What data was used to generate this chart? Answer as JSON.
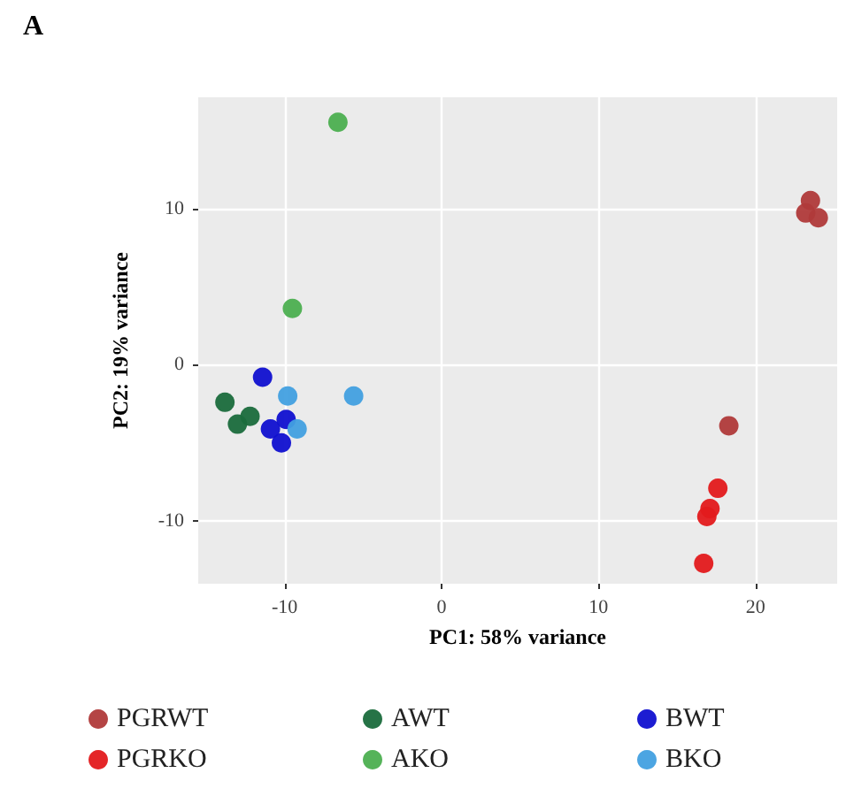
{
  "chart_data": {
    "type": "scatter",
    "title": "A",
    "xlabel": "PC1: 58% variance",
    "ylabel": "PC2: 19% variance",
    "xlim": [
      -15.5,
      25.2
    ],
    "ylim": [
      -14,
      17.1
    ],
    "xticks": [
      -10,
      0,
      10,
      20
    ],
    "yticks": [
      -10,
      0,
      10
    ],
    "grid": true,
    "legend": "bottom",
    "marker": "circle",
    "series": [
      {
        "name": "PGRWT",
        "color": "#b03a3a",
        "x": [
          23.5,
          23.2,
          24,
          18.3
        ],
        "values": [
          10.5,
          9.7,
          9.4,
          -3.9
        ]
      },
      {
        "name": "PGRKO",
        "color": "#e31a1c",
        "x": [
          17.6,
          17.1,
          16.9,
          16.7
        ],
        "values": [
          -7.9,
          -9.2,
          -9.7,
          -12.7
        ]
      },
      {
        "name": "AWT",
        "color": "#1a6b3c",
        "x": [
          -13.8,
          -13,
          -12.2
        ],
        "values": [
          -2.4,
          -3.8,
          -3.3
        ]
      },
      {
        "name": "AKO",
        "color": "#4caf50",
        "x": [
          -6.6,
          -9.5
        ],
        "values": [
          15.5,
          3.6
        ]
      },
      {
        "name": "BWT",
        "color": "#1010d0",
        "x": [
          -11.4,
          -10.9,
          -10.2,
          -9.9
        ],
        "values": [
          -0.8,
          -4.1,
          -5,
          -3.5
        ]
      },
      {
        "name": "BKO",
        "color": "#42a0e0",
        "x": [
          -9.8,
          -5.6,
          -9.2
        ],
        "values": [
          -2,
          -2,
          -4.1
        ]
      }
    ]
  }
}
